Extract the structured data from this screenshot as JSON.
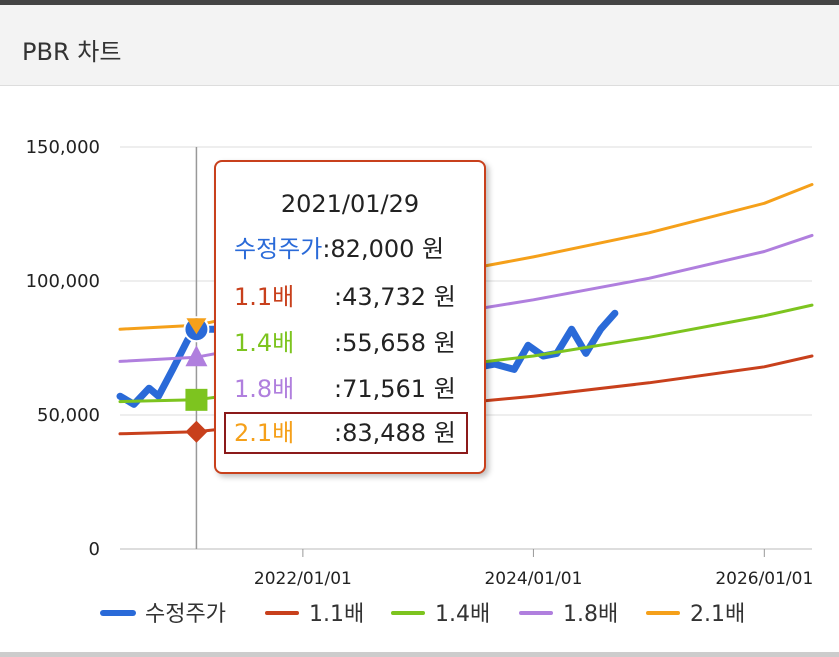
{
  "header": {
    "title": "PBR 차트"
  },
  "chart_data": {
    "type": "line",
    "title": "PBR 차트",
    "xlabel": "",
    "ylabel": "",
    "x_ticks": [
      "2022/01/01",
      "2024/01/01",
      "2026/01/01"
    ],
    "x_range": [
      "2020/06/01",
      "2026/06/01"
    ],
    "y_ticks": [
      "0",
      "50,000",
      "100,000",
      "150,000"
    ],
    "ylim": [
      0,
      150000
    ],
    "grid": true,
    "legend_position": "bottom",
    "series": [
      {
        "name": "수정주가",
        "color": "#2a6ad8",
        "points": [
          [
            "2020/06/01",
            57000
          ],
          [
            "2020/07/15",
            54000
          ],
          [
            "2020/09/01",
            60000
          ],
          [
            "2020/10/01",
            57000
          ],
          [
            "2020/11/15",
            67000
          ],
          [
            "2021/01/01",
            78000
          ],
          [
            "2021/01/29",
            82000
          ],
          [
            "2021/04/01",
            82000
          ],
          [
            "2021/07/01",
            81000
          ],
          [
            "2023/03/01",
            68000
          ],
          [
            "2023/04/15",
            66000
          ],
          [
            "2023/06/01",
            73000
          ],
          [
            "2023/07/15",
            68000
          ],
          [
            "2023/09/01",
            69000
          ],
          [
            "2023/11/01",
            67000
          ],
          [
            "2023/12/15",
            76000
          ],
          [
            "2024/02/01",
            72000
          ],
          [
            "2024/03/15",
            73000
          ],
          [
            "2024/05/01",
            82000
          ],
          [
            "2024/06/15",
            73000
          ],
          [
            "2024/08/01",
            82000
          ],
          [
            "2024/09/15",
            88000
          ]
        ]
      },
      {
        "name": "1.1배",
        "color": "#c8401c",
        "points": [
          [
            "2020/06/01",
            43000
          ],
          [
            "2021/01/29",
            43732
          ],
          [
            "2022/01/01",
            48000
          ],
          [
            "2023/01/01",
            53000
          ],
          [
            "2024/01/01",
            57000
          ],
          [
            "2025/01/01",
            62000
          ],
          [
            "2026/01/01",
            68000
          ],
          [
            "2026/06/01",
            72000
          ]
        ]
      },
      {
        "name": "1.4배",
        "color": "#7dc41f",
        "points": [
          [
            "2020/06/01",
            55000
          ],
          [
            "2021/01/29",
            55658
          ],
          [
            "2022/01/01",
            61000
          ],
          [
            "2023/01/01",
            67000
          ],
          [
            "2024/01/01",
            72000
          ],
          [
            "2025/01/01",
            79000
          ],
          [
            "2026/01/01",
            87000
          ],
          [
            "2026/06/01",
            91000
          ]
        ]
      },
      {
        "name": "1.8배",
        "color": "#b07fde",
        "points": [
          [
            "2020/06/01",
            70000
          ],
          [
            "2021/01/29",
            71561
          ],
          [
            "2022/01/01",
            79000
          ],
          [
            "2023/01/01",
            86000
          ],
          [
            "2024/01/01",
            93000
          ],
          [
            "2025/01/01",
            101000
          ],
          [
            "2026/01/01",
            111000
          ],
          [
            "2026/06/01",
            117000
          ]
        ]
      },
      {
        "name": "2.1배",
        "color": "#f5a01a",
        "points": [
          [
            "2020/06/01",
            82000
          ],
          [
            "2021/01/29",
            83488
          ],
          [
            "2022/01/01",
            92000
          ],
          [
            "2023/01/01",
            101000
          ],
          [
            "2024/01/01",
            109000
          ],
          [
            "2025/01/01",
            118000
          ],
          [
            "2026/01/01",
            129000
          ],
          [
            "2026/06/01",
            136000
          ]
        ]
      }
    ],
    "crosshair_x": "2021/01/29",
    "tooltip": {
      "date": "2021/01/29",
      "highlighted": "2.1배",
      "rows": [
        {
          "label": "수정주가",
          "value": ":82,000 원",
          "color": "#2a6ad8"
        },
        {
          "label": "1.1배",
          "value": ":43,732 원",
          "color": "#c8401c"
        },
        {
          "label": "1.4배",
          "value": ":55,658 원",
          "color": "#7dc41f"
        },
        {
          "label": "1.8배",
          "value": ":71,561 원",
          "color": "#b07fde"
        },
        {
          "label": "2.1배",
          "value": ":83,488 원",
          "color": "#f5a01a"
        }
      ]
    }
  }
}
